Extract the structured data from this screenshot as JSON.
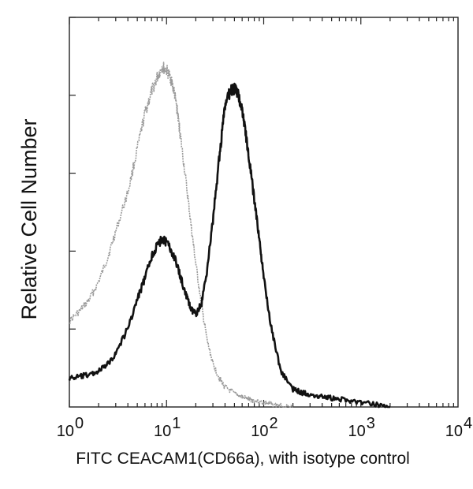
{
  "chart_data": {
    "type": "line",
    "title": "",
    "xlabel": "FITC CEACAM1(CD66a), with isotype control",
    "ylabel": "Relative Cell Number",
    "x_scale": "log",
    "xlim": [
      1,
      10000
    ],
    "ylim": [
      0,
      1
    ],
    "x_ticks": [
      {
        "base": "10",
        "exp": "0",
        "value": 1
      },
      {
        "base": "10",
        "exp": "1",
        "value": 10
      },
      {
        "base": "10",
        "exp": "2",
        "value": 100
      },
      {
        "base": "10",
        "exp": "3",
        "value": 1000
      },
      {
        "base": "10",
        "exp": "4",
        "value": 10000
      }
    ],
    "grid": false,
    "legend": "none",
    "series": [
      {
        "role": "isotype-control",
        "color": "#9a9a9a",
        "x": [
          1,
          1.3,
          1.6,
          2,
          2.5,
          3,
          4,
          5,
          6,
          7,
          8,
          9,
          10,
          11,
          12,
          13,
          14,
          16,
          18,
          20,
          23,
          26,
          30,
          35,
          40,
          50,
          60,
          70,
          80,
          100,
          120,
          150,
          200
        ],
        "y": [
          0.24,
          0.27,
          0.3,
          0.35,
          0.42,
          0.49,
          0.6,
          0.72,
          0.82,
          0.88,
          0.92,
          0.95,
          0.94,
          0.92,
          0.88,
          0.82,
          0.75,
          0.62,
          0.5,
          0.4,
          0.28,
          0.19,
          0.12,
          0.08,
          0.055,
          0.038,
          0.028,
          0.022,
          0.018,
          0.012,
          0.008,
          0.004,
          0.0
        ]
      },
      {
        "role": "ceacam1",
        "color": "#111111",
        "x": [
          1,
          1.3,
          1.6,
          2,
          2.5,
          3,
          4,
          5,
          6,
          7,
          8,
          9,
          10,
          12,
          14,
          16,
          18,
          20,
          23,
          26,
          30,
          35,
          40,
          45,
          50,
          55,
          60,
          65,
          70,
          80,
          90,
          100,
          120,
          150,
          200,
          250,
          300,
          400,
          500,
          700,
          1000,
          1500,
          2000
        ],
        "y": [
          0.08,
          0.085,
          0.09,
          0.1,
          0.12,
          0.15,
          0.22,
          0.3,
          0.36,
          0.42,
          0.45,
          0.47,
          0.46,
          0.42,
          0.36,
          0.31,
          0.27,
          0.26,
          0.29,
          0.38,
          0.52,
          0.7,
          0.84,
          0.88,
          0.89,
          0.87,
          0.83,
          0.77,
          0.7,
          0.58,
          0.47,
          0.36,
          0.22,
          0.1,
          0.05,
          0.04,
          0.035,
          0.03,
          0.025,
          0.02,
          0.012,
          0.006,
          0.0
        ]
      }
    ]
  }
}
